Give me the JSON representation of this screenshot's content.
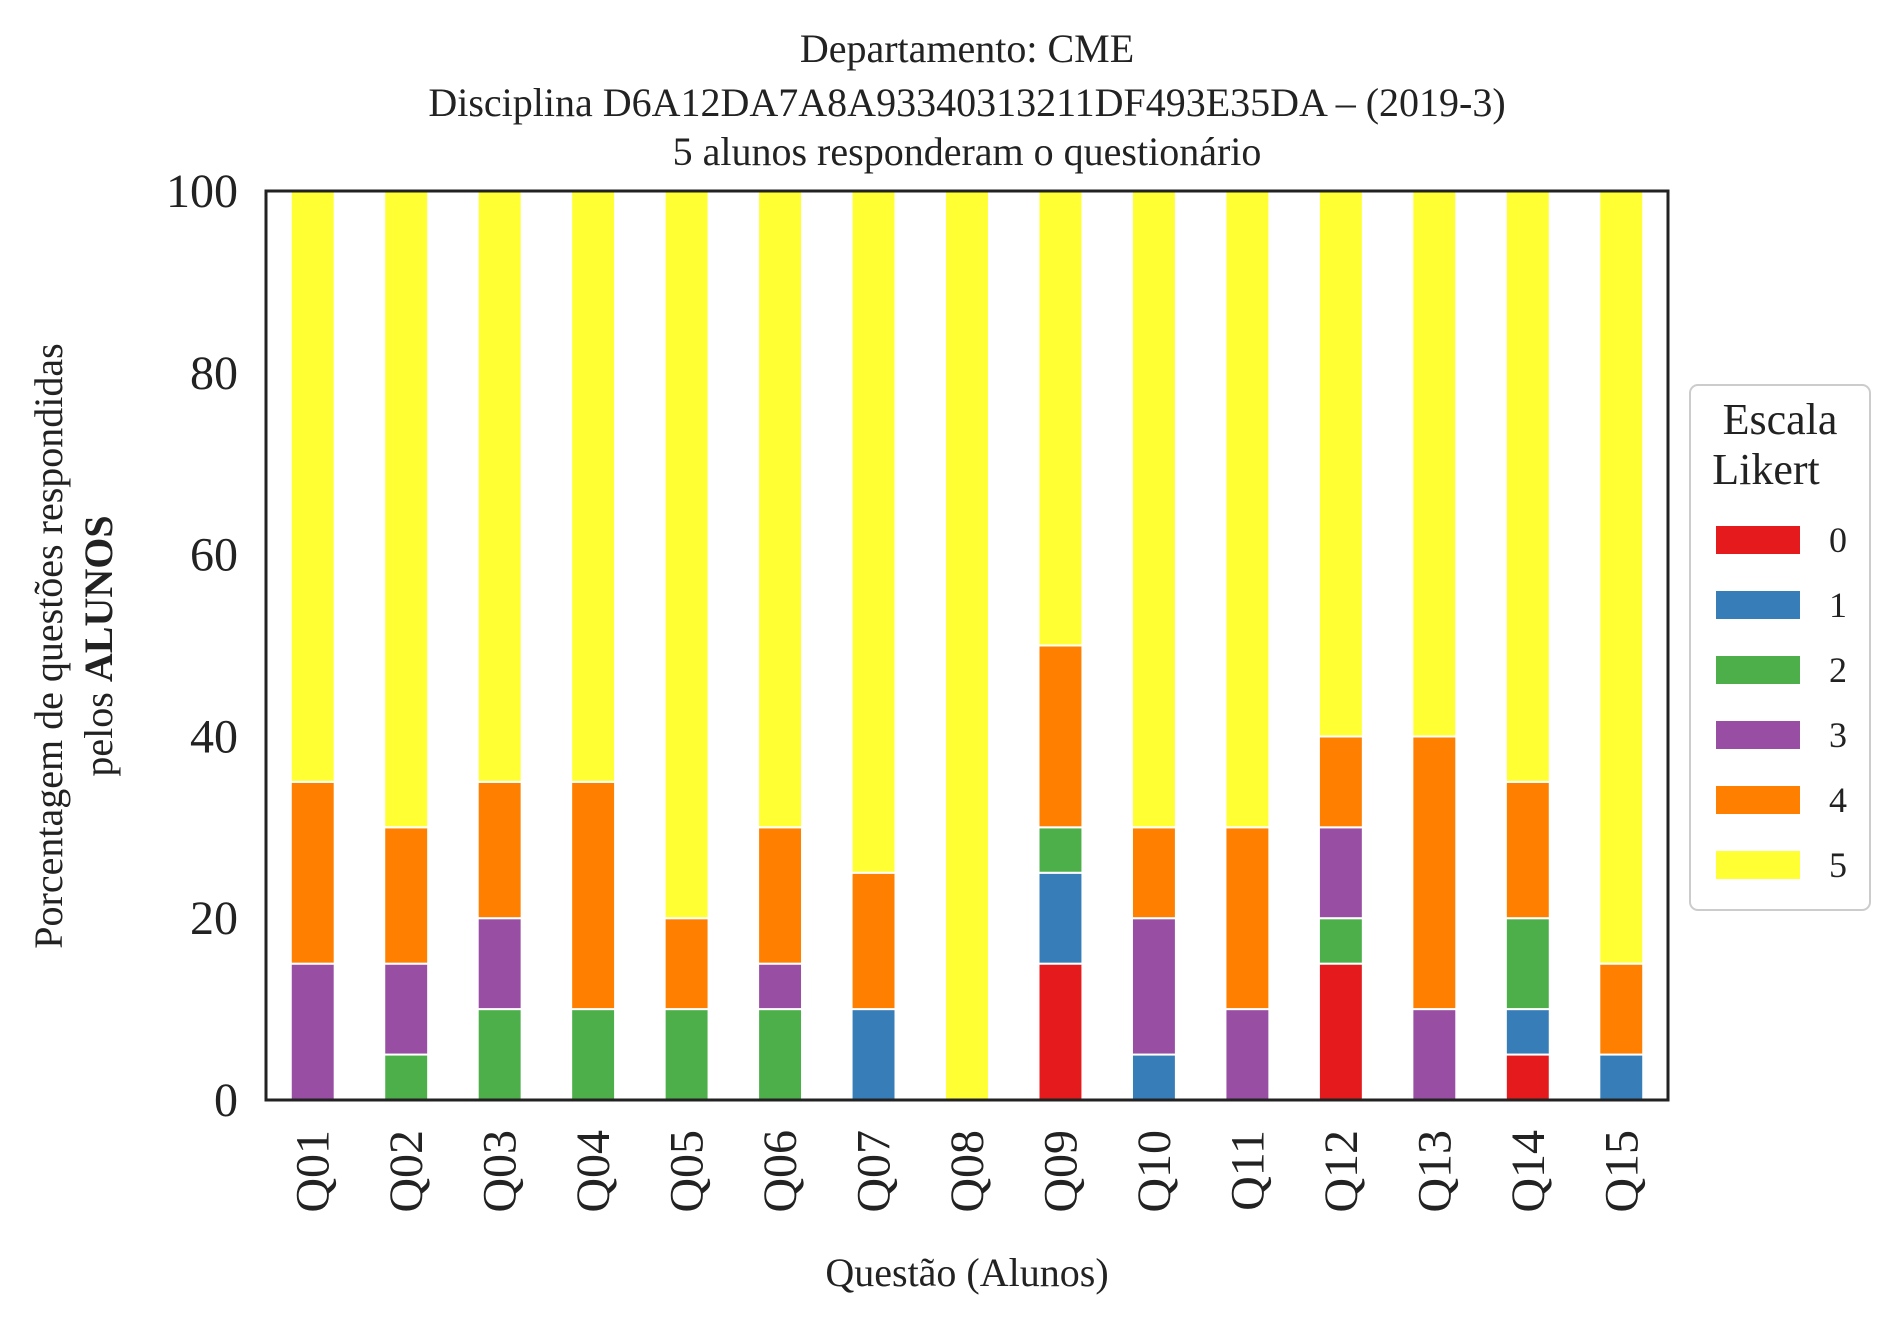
{
  "chart_data": {
    "type": "bar",
    "stacked": true,
    "title": [
      "Departamento: CME",
      "Disciplina D6A12DA7A8A93340313211DF493E35DA – (2019-3)",
      "5 alunos responderam o questionário"
    ],
    "xlabel": "Questão (Alunos)",
    "ylabel": {
      "line1": "Porcentagem de questões respondidas",
      "line2_prefix": "pelos ",
      "line2_bold": "ALUNOS"
    },
    "ylim": [
      0,
      100
    ],
    "yticks": [
      0,
      20,
      40,
      60,
      80,
      100
    ],
    "categories": [
      "Q01",
      "Q02",
      "Q03",
      "Q04",
      "Q05",
      "Q06",
      "Q07",
      "Q08",
      "Q09",
      "Q10",
      "Q11",
      "Q12",
      "Q13",
      "Q14",
      "Q15"
    ],
    "legend": {
      "title": [
        "Escala",
        "Likert"
      ],
      "placement": "right"
    },
    "grid": false,
    "series": [
      {
        "name": "0",
        "color": "#e41a1c",
        "values": [
          0,
          0,
          0,
          0,
          0,
          0,
          0,
          0,
          15,
          0,
          0,
          15,
          0,
          5,
          0
        ]
      },
      {
        "name": "1",
        "color": "#377eb8",
        "values": [
          0,
          0,
          0,
          0,
          0,
          0,
          10,
          0,
          10,
          5,
          0,
          0,
          0,
          5,
          5
        ]
      },
      {
        "name": "2",
        "color": "#4daf4a",
        "values": [
          0,
          5,
          10,
          10,
          10,
          10,
          0,
          0,
          5,
          0,
          0,
          5,
          0,
          10,
          0
        ]
      },
      {
        "name": "3",
        "color": "#984ea3",
        "values": [
          15,
          10,
          10,
          0,
          0,
          5,
          0,
          0,
          0,
          15,
          10,
          10,
          10,
          0,
          0
        ]
      },
      {
        "name": "4",
        "color": "#ff7f00",
        "values": [
          20,
          15,
          15,
          25,
          10,
          15,
          15,
          0,
          20,
          10,
          20,
          10,
          30,
          15,
          10
        ]
      },
      {
        "name": "5",
        "color": "#ffff33",
        "values": [
          65,
          70,
          65,
          65,
          80,
          70,
          75,
          100,
          50,
          70,
          70,
          60,
          60,
          65,
          85
        ]
      }
    ]
  }
}
